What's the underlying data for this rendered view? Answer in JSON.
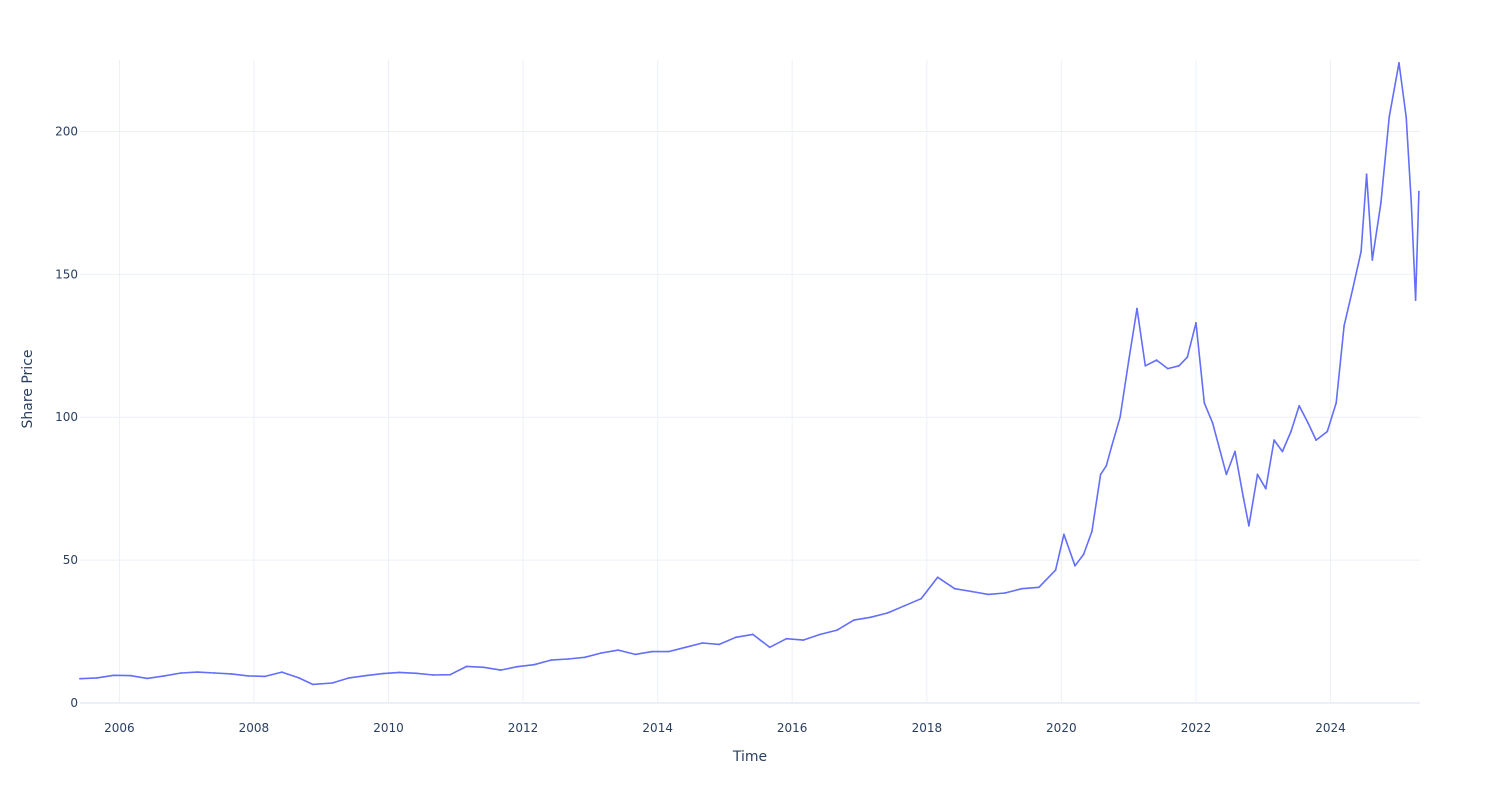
{
  "chart_data": {
    "type": "line",
    "xlabel": "Time",
    "ylabel": "Share Price",
    "x_tick_labels": [
      "2006",
      "2008",
      "2010",
      "2012",
      "2014",
      "2016",
      "2018",
      "2020",
      "2022",
      "2024"
    ],
    "y_tick_labels": [
      "0",
      "50",
      "100",
      "150",
      "200"
    ],
    "xlim": [
      "2005-06-01",
      "2025-05-01"
    ],
    "ylim": [
      0,
      225
    ],
    "grid": true,
    "legend": "none",
    "series": [
      {
        "color": "#636efa",
        "x": [
          "2005-06-01",
          "2005-09-01",
          "2005-12-01",
          "2006-03-01",
          "2006-06-01",
          "2006-09-01",
          "2006-12-01",
          "2007-03-01",
          "2007-06-01",
          "2007-09-01",
          "2007-12-01",
          "2008-03-01",
          "2008-06-01",
          "2008-09-01",
          "2008-11-15",
          "2009-03-01",
          "2009-06-01",
          "2009-09-01",
          "2009-12-01",
          "2010-03-01",
          "2010-06-01",
          "2010-09-01",
          "2010-12-01",
          "2011-03-01",
          "2011-06-01",
          "2011-09-01",
          "2011-12-01",
          "2012-03-01",
          "2012-06-01",
          "2012-09-01",
          "2012-12-01",
          "2013-03-01",
          "2013-06-01",
          "2013-09-01",
          "2013-12-01",
          "2014-03-01",
          "2014-06-01",
          "2014-09-01",
          "2014-12-01",
          "2015-03-01",
          "2015-06-01",
          "2015-09-01",
          "2015-12-01",
          "2016-03-01",
          "2016-06-01",
          "2016-09-01",
          "2016-12-01",
          "2017-03-01",
          "2017-06-01",
          "2017-09-01",
          "2017-12-01",
          "2018-03-01",
          "2018-06-01",
          "2018-09-01",
          "2018-12-01",
          "2019-03-01",
          "2019-06-01",
          "2019-09-01",
          "2019-12-01",
          "2020-01-15",
          "2020-03-15",
          "2020-05-01",
          "2020-06-15",
          "2020-08-01",
          "2020-09-01",
          "2020-10-01",
          "2020-11-15",
          "2021-01-01",
          "2021-02-15",
          "2021-04-01",
          "2021-06-01",
          "2021-08-01",
          "2021-10-01",
          "2021-11-15",
          "2022-01-01",
          "2022-02-15",
          "2022-04-01",
          "2022-06-15",
          "2022-08-01",
          "2022-09-15",
          "2022-10-15",
          "2022-12-01",
          "2023-01-15",
          "2023-03-01",
          "2023-04-15",
          "2023-06-01",
          "2023-07-15",
          "2023-09-01",
          "2023-10-15",
          "2023-12-15",
          "2024-02-01",
          "2024-03-15",
          "2024-05-01",
          "2024-06-15",
          "2024-07-15",
          "2024-08-15",
          "2024-10-01",
          "2024-11-15",
          "2025-01-07",
          "2025-02-15",
          "2025-03-15",
          "2025-04-07",
          "2025-04-25"
        ],
        "y": [
          8.5,
          8.8,
          9.7,
          9.6,
          8.6,
          9.5,
          10.5,
          10.8,
          10.5,
          10.2,
          9.5,
          9.3,
          10.8,
          8.8,
          6.5,
          7.0,
          8.8,
          9.6,
          10.3,
          10.7,
          10.4,
          9.8,
          9.9,
          12.8,
          12.5,
          11.5,
          12.7,
          13.4,
          15.0,
          15.4,
          16.0,
          17.5,
          18.5,
          17.0,
          18.0,
          18.0,
          19.5,
          21.0,
          20.5,
          23.0,
          24.0,
          19.5,
          22.5,
          22.0,
          24.0,
          25.5,
          29.0,
          30.0,
          31.5,
          34.0,
          36.5,
          44.0,
          40.0,
          39.0,
          38.0,
          38.5,
          40.0,
          40.5,
          46.5,
          59.0,
          48.0,
          52.0,
          60.0,
          80.0,
          83.0,
          90.0,
          100.0,
          120.0,
          138.0,
          118.0,
          120.0,
          117.0,
          118.0,
          121.0,
          133.0,
          105.0,
          98.0,
          80.0,
          88.0,
          72.0,
          62.0,
          80.0,
          75.0,
          92.0,
          88.0,
          95.0,
          104.0,
          98.0,
          92.0,
          95.0,
          105.0,
          132.0,
          145.0,
          158.0,
          185.0,
          155.0,
          175.0,
          205.0,
          224.0,
          205.0,
          175.0,
          141.0,
          179.0
        ]
      }
    ]
  }
}
